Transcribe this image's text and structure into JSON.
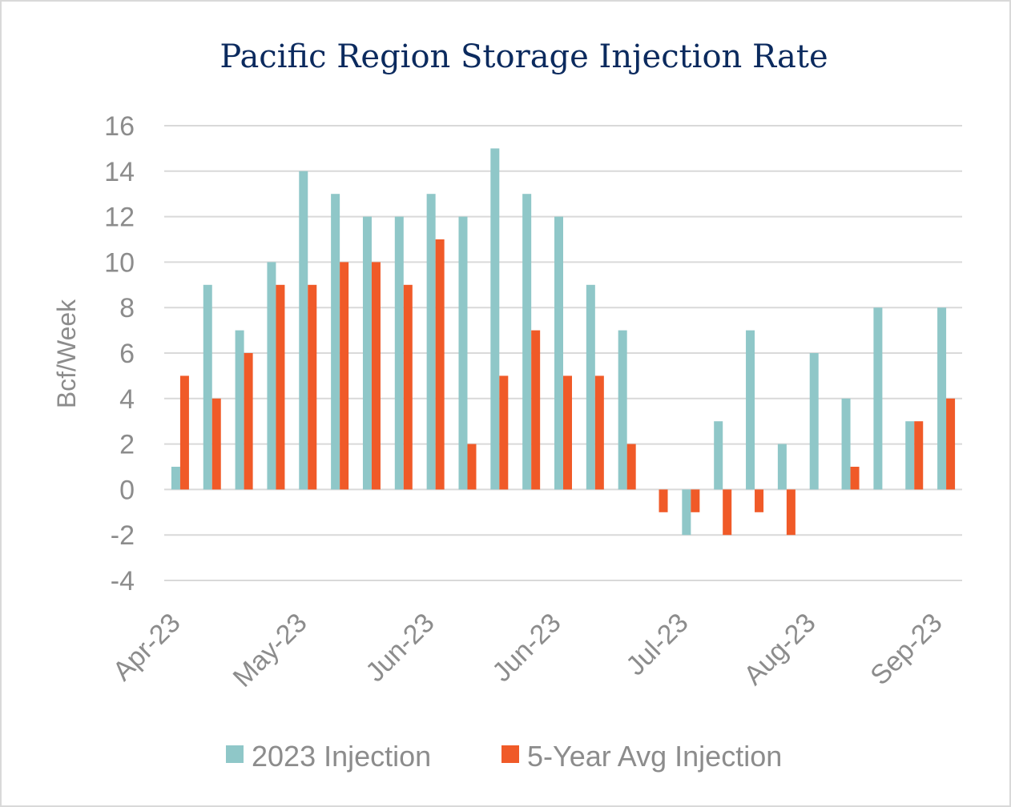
{
  "chart_data": {
    "type": "bar",
    "title": "Pacific Region Storage Injection Rate",
    "ylabel": "Bcf/Week",
    "xlabel": "",
    "ylim": [
      -4,
      16
    ],
    "yticks": [
      16,
      14,
      12,
      10,
      8,
      6,
      4,
      2,
      0,
      -2,
      -4
    ],
    "x_tick_labels": [
      "Apr-23",
      "May-23",
      "Jun-23",
      "Jun-23",
      "Jul-23",
      "Aug-23",
      "Sep-23"
    ],
    "grid": true,
    "legend_position": "bottom",
    "series": [
      {
        "name": "2023 Injection",
        "color": "#8fc7c8",
        "values": [
          1,
          9,
          7,
          10,
          14,
          13,
          12,
          12,
          13,
          12,
          15,
          13,
          12,
          9,
          7,
          0,
          -2,
          3,
          7,
          2,
          6,
          4,
          8,
          3,
          8
        ]
      },
      {
        "name": "5-Year Avg Injection",
        "color": "#f05a28",
        "values": [
          5,
          4,
          6,
          9,
          9,
          10,
          10,
          9,
          11,
          2,
          5,
          7,
          5,
          5,
          2,
          -1,
          -1,
          -2,
          -1,
          -2,
          0,
          1,
          0,
          3,
          4
        ]
      }
    ]
  }
}
